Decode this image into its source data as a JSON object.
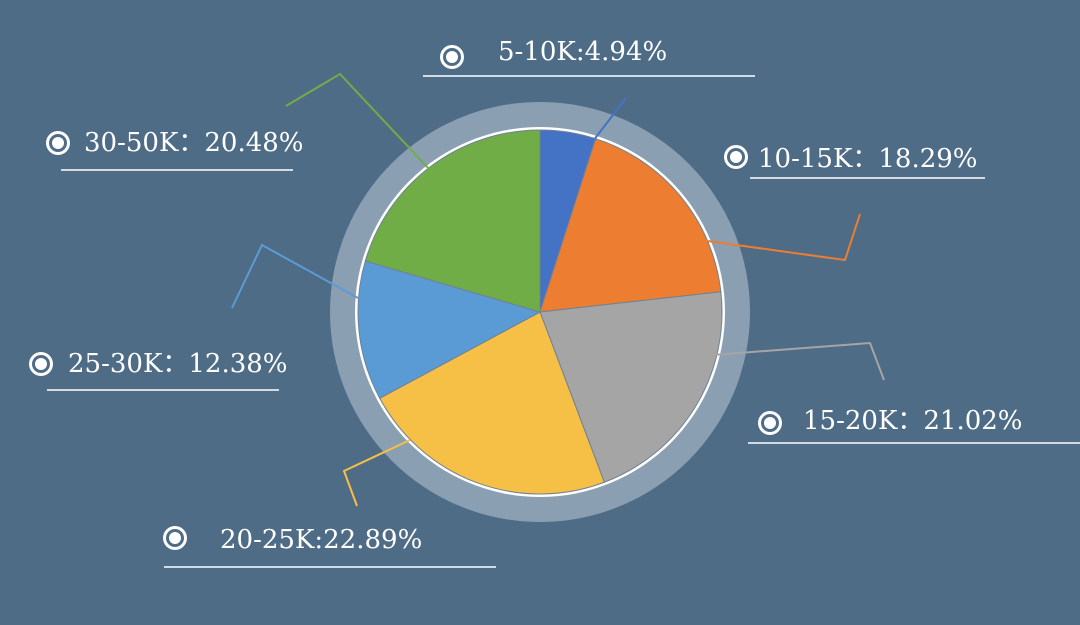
{
  "chart_data": {
    "type": "pie",
    "title": "",
    "legend": "none",
    "slices": [
      {
        "label": "5-10K:4.94%",
        "value": 4.94,
        "color": "#4472c4"
      },
      {
        "label": "10-15K：18.29%",
        "value": 18.29,
        "color": "#ed7d31"
      },
      {
        "label": "15-20K：21.02%",
        "value": 21.02,
        "color": "#a5a5a5"
      },
      {
        "label": "20-25K:22.89%",
        "value": 22.89,
        "color": "#f6bf45"
      },
      {
        "label": "25-30K：12.38%",
        "value": 12.38,
        "color": "#5b9bd5"
      },
      {
        "label": "30-50K：20.48%",
        "value": 20.48,
        "color": "#70ad47"
      }
    ]
  },
  "colors": {
    "background": "#4f6c87",
    "ring": "#8a9fb2",
    "rim": "#ffffff",
    "underline": "#ffffff"
  }
}
